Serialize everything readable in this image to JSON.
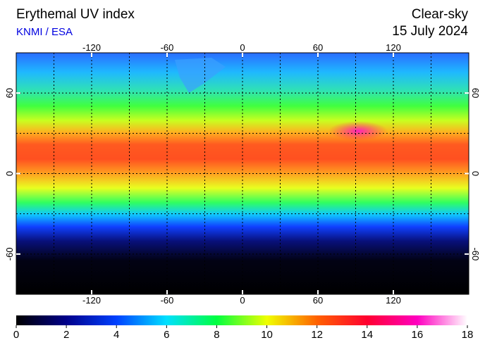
{
  "header": {
    "title": "Erythemal UV index",
    "source": "KNMI / ESA",
    "mode": "Clear-sky",
    "date": "15 July 2024"
  },
  "map": {
    "xlim": [
      -180,
      180
    ],
    "ylim": [
      -90,
      90
    ],
    "xticks": [
      -120,
      -60,
      0,
      60,
      120
    ],
    "yticks": [
      60,
      0,
      -60
    ],
    "grid_step": 30
  },
  "colorbar": {
    "lim": [
      0,
      18
    ],
    "ticks": [
      0,
      2,
      4,
      6,
      8,
      10,
      12,
      14,
      16,
      18
    ]
  }
}
